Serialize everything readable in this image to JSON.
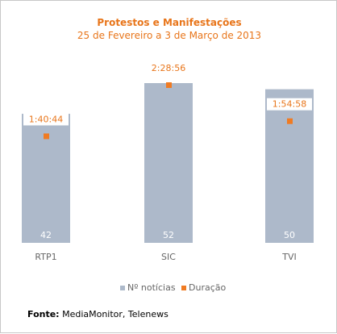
{
  "chart_data": {
    "type": "bar",
    "title": "Protestos e Manifestações",
    "subtitle": "25 de Fevereiro a 3 de Março de 2013",
    "categories": [
      "RTP1",
      "SIC",
      "TVI"
    ],
    "series": [
      {
        "name": "Nº notícias",
        "type": "bar",
        "values": [
          42,
          52,
          50
        ],
        "color": "#adb9ca"
      },
      {
        "name": "Duração",
        "type": "scatter",
        "values": [
          "1:40:44",
          "2:28:56",
          "1:54:58"
        ],
        "seconds": [
          6044,
          8936,
          6898
        ],
        "color": "#f07b22"
      }
    ],
    "ylim_bars": [
      0,
      52
    ],
    "ylim_duration_seconds": [
      0,
      8936
    ],
    "legend": "bottom",
    "grid": false
  },
  "source": {
    "label": "Fonte:",
    "text": " MediaMonitor, Telenews"
  }
}
